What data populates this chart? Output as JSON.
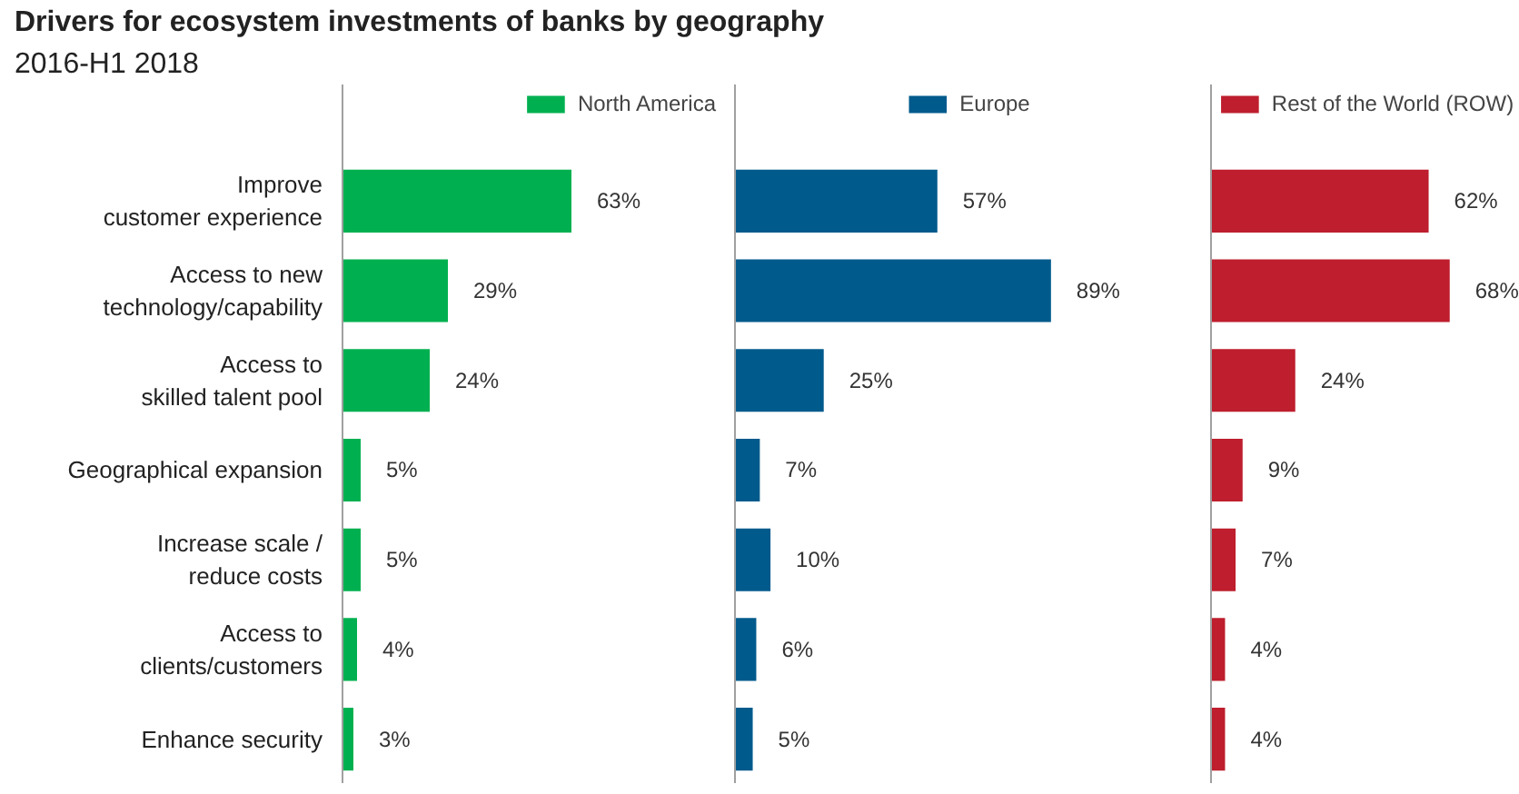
{
  "chart_data": [
    {
      "type": "bar",
      "orientation": "horizontal",
      "title": "Drivers for ecosystem investments of banks by geography",
      "subtitle": "2016-H1 2018",
      "categories": [
        "Improve\ncustomer experience",
        "Access to new\ntechnology/capability",
        "Access to\nskilled talent pool",
        "Geographical expansion",
        "Increase scale /\nreduce costs",
        "Access to\nclients/customers",
        "Enhance security"
      ],
      "legend": "top",
      "tick_labels": "y",
      "series": [
        {
          "name": "North America",
          "color": "#00b050",
          "values": [
            63,
            29,
            24,
            5,
            5,
            4,
            3
          ],
          "value_labels": [
            "63%",
            "29%",
            "24%",
            "5%",
            "5%",
            "4%",
            "3%"
          ]
        }
      ]
    },
    {
      "type": "bar",
      "orientation": "horizontal",
      "categories": [
        null,
        null,
        null,
        null,
        null,
        null,
        null
      ],
      "legend": "top",
      "tick_labels": false,
      "series": [
        {
          "name": "Europe",
          "color": "#005a8c",
          "values": [
            57,
            89,
            25,
            7,
            10,
            6,
            5
          ],
          "value_labels": [
            "57%",
            "89%",
            "25%",
            "7%",
            "10%",
            "6%",
            "5%"
          ]
        }
      ]
    },
    {
      "type": "bar",
      "orientation": "horizontal",
      "categories": [
        null,
        null,
        null,
        null,
        null,
        null,
        null
      ],
      "legend": "top",
      "tick_labels": false,
      "series": [
        {
          "name": "Rest of the World (ROW)",
          "color": "#be1e2d",
          "values": [
            62,
            68,
            24,
            9,
            7,
            4,
            4
          ],
          "value_labels": [
            "62%",
            "68%",
            "24%",
            "9%",
            "7%",
            "4%",
            "4%"
          ]
        }
      ]
    }
  ]
}
